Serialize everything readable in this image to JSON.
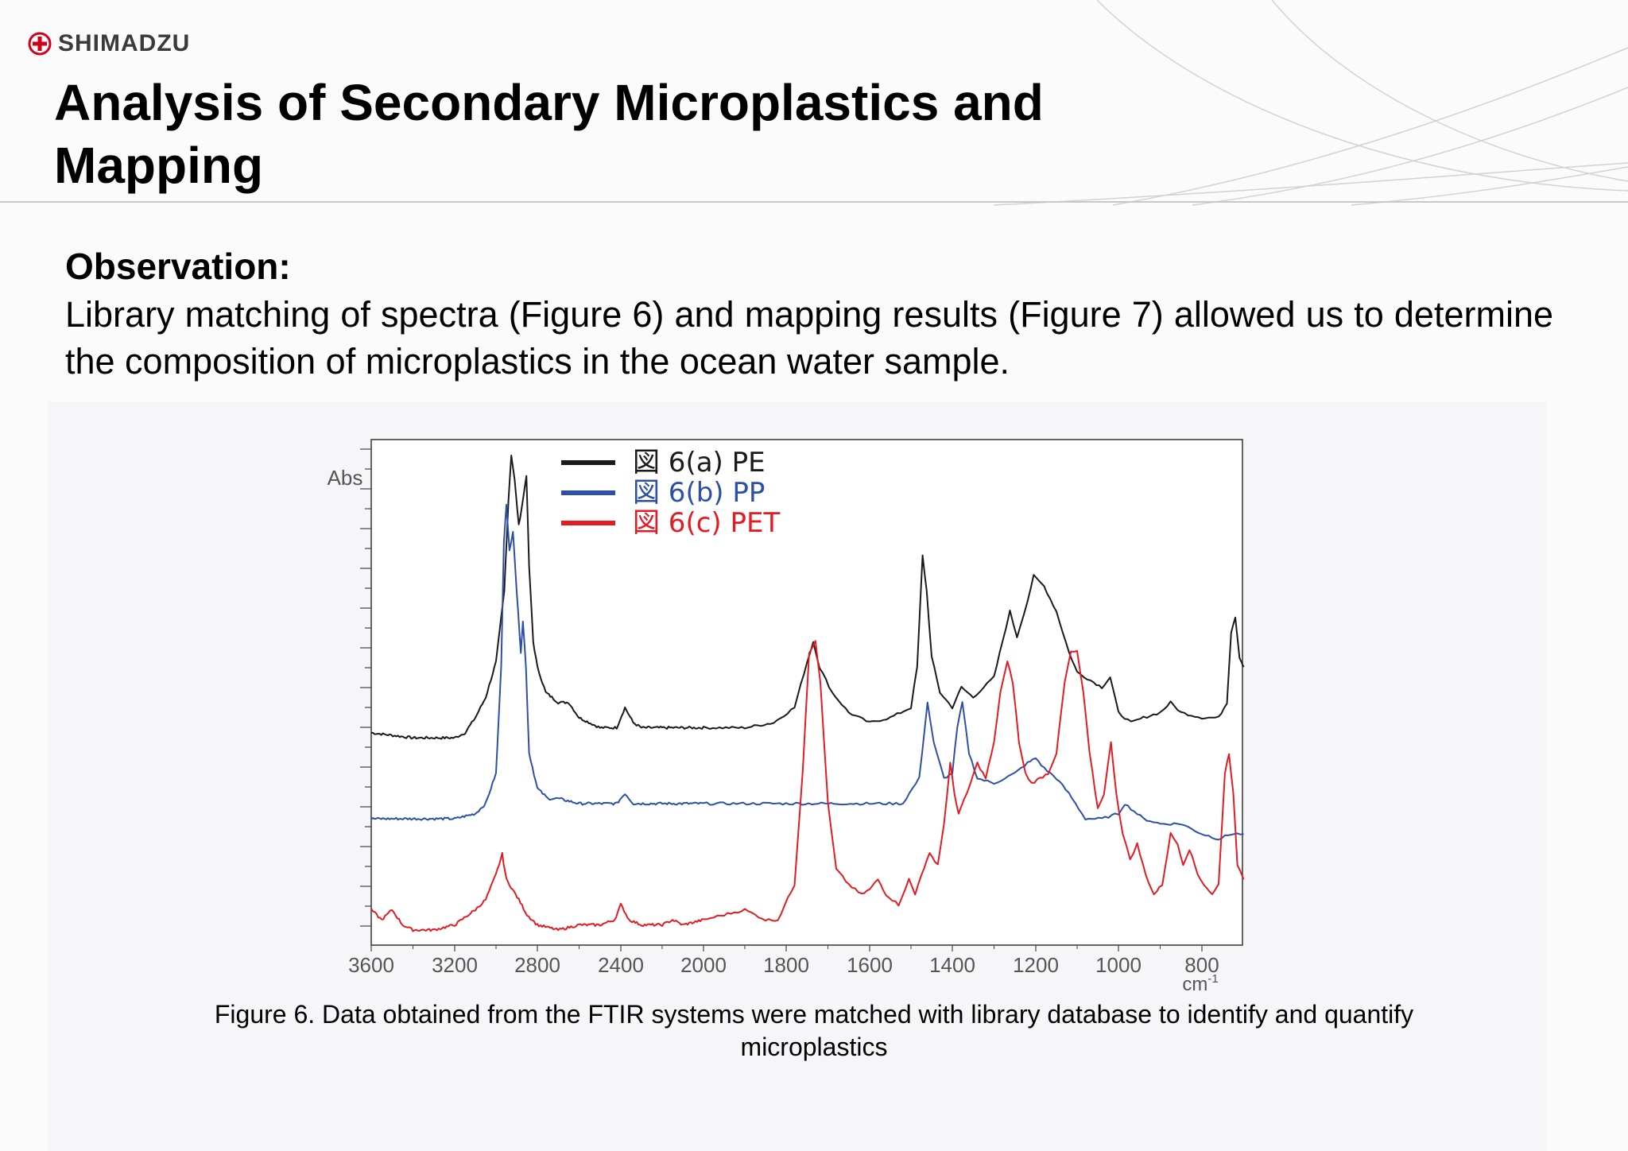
{
  "brand": {
    "name": "SHIMADZU",
    "color": "#d0021b",
    "icon": "shimadzu-cross-logo-icon"
  },
  "page": {
    "title": "Analysis of Secondary Microplastics and Mapping"
  },
  "observation": {
    "heading": "Observation:",
    "text": "Library matching of spectra (Figure 6) and mapping results (Figure 7) allowed us to determine the composition of microplastics in the ocean water sample."
  },
  "figure": {
    "caption": "Figure 6. Data obtained from the FTIR systems were matched with library database to identify and quantify microplastics"
  },
  "chart_data": {
    "type": "line",
    "ylabel": "Abs",
    "xlabel": "cm-1",
    "x_ticks": [
      3600,
      3200,
      2800,
      2400,
      2000,
      1800,
      1600,
      1400,
      1200,
      1000,
      800
    ],
    "x_tick_labels": [
      "3600",
      "3200",
      "2800",
      "2400",
      "2000",
      "1800",
      "1600",
      "1400",
      "1200",
      "1000",
      "800"
    ],
    "xlim": [
      3600,
      700
    ],
    "ylim": [
      0,
      100
    ],
    "grid": false,
    "legend_position": "top-center",
    "series": [
      {
        "name": "図 6(a) PE",
        "color": "#1a1a1a",
        "points": [
          [
            3600,
            42
          ],
          [
            3400,
            41
          ],
          [
            3200,
            41
          ],
          [
            3150,
            42
          ],
          [
            3100,
            45
          ],
          [
            3050,
            49
          ],
          [
            3000,
            56
          ],
          [
            2960,
            70
          ],
          [
            2940,
            88
          ],
          [
            2926,
            97
          ],
          [
            2910,
            92
          ],
          [
            2890,
            83
          ],
          [
            2870,
            88
          ],
          [
            2853,
            93
          ],
          [
            2840,
            75
          ],
          [
            2820,
            60
          ],
          [
            2800,
            55
          ],
          [
            2760,
            50
          ],
          [
            2700,
            48
          ],
          [
            2650,
            48
          ],
          [
            2600,
            45
          ],
          [
            2500,
            43
          ],
          [
            2420,
            43
          ],
          [
            2380,
            47
          ],
          [
            2340,
            44
          ],
          [
            2300,
            43
          ],
          [
            2200,
            43
          ],
          [
            2100,
            43
          ],
          [
            2000,
            43
          ],
          [
            1900,
            43
          ],
          [
            1830,
            44
          ],
          [
            1780,
            47
          ],
          [
            1750,
            56
          ],
          [
            1735,
            60
          ],
          [
            1720,
            55
          ],
          [
            1690,
            50
          ],
          [
            1650,
            46
          ],
          [
            1600,
            44
          ],
          [
            1550,
            45
          ],
          [
            1500,
            47
          ],
          [
            1485,
            55
          ],
          [
            1472,
            77
          ],
          [
            1462,
            70
          ],
          [
            1450,
            57
          ],
          [
            1430,
            50
          ],
          [
            1400,
            47
          ],
          [
            1378,
            51
          ],
          [
            1350,
            49
          ],
          [
            1300,
            53
          ],
          [
            1280,
            60
          ],
          [
            1262,
            66
          ],
          [
            1245,
            61
          ],
          [
            1220,
            68
          ],
          [
            1205,
            73
          ],
          [
            1180,
            71
          ],
          [
            1150,
            66
          ],
          [
            1120,
            58
          ],
          [
            1100,
            54
          ],
          [
            1060,
            52
          ],
          [
            1040,
            51
          ],
          [
            1020,
            53
          ],
          [
            1000,
            46
          ],
          [
            970,
            44
          ],
          [
            940,
            45
          ],
          [
            900,
            46
          ],
          [
            875,
            48
          ],
          [
            850,
            46
          ],
          [
            800,
            45
          ],
          [
            760,
            45
          ],
          [
            740,
            48
          ],
          [
            730,
            62
          ],
          [
            720,
            65
          ],
          [
            710,
            57
          ],
          [
            700,
            55
          ]
        ]
      },
      {
        "name": "図 6(b) PP",
        "color": "#2e4fa8",
        "points": [
          [
            3600,
            25
          ],
          [
            3400,
            25
          ],
          [
            3200,
            25
          ],
          [
            3100,
            26
          ],
          [
            3050,
            28
          ],
          [
            3000,
            34
          ],
          [
            2975,
            55
          ],
          [
            2962,
            80
          ],
          [
            2950,
            87
          ],
          [
            2935,
            78
          ],
          [
            2918,
            82
          ],
          [
            2900,
            70
          ],
          [
            2880,
            58
          ],
          [
            2870,
            64
          ],
          [
            2855,
            55
          ],
          [
            2840,
            38
          ],
          [
            2800,
            31
          ],
          [
            2750,
            29
          ],
          [
            2700,
            29
          ],
          [
            2600,
            28
          ],
          [
            2420,
            28
          ],
          [
            2380,
            30
          ],
          [
            2340,
            28
          ],
          [
            2200,
            28
          ],
          [
            2000,
            28
          ],
          [
            1800,
            28
          ],
          [
            1700,
            28
          ],
          [
            1600,
            28
          ],
          [
            1520,
            28
          ],
          [
            1480,
            33
          ],
          [
            1460,
            48
          ],
          [
            1445,
            40
          ],
          [
            1420,
            33
          ],
          [
            1400,
            34
          ],
          [
            1388,
            43
          ],
          [
            1376,
            48
          ],
          [
            1360,
            38
          ],
          [
            1340,
            33
          ],
          [
            1300,
            32
          ],
          [
            1250,
            34
          ],
          [
            1220,
            36
          ],
          [
            1200,
            37
          ],
          [
            1180,
            35
          ],
          [
            1150,
            33
          ],
          [
            1120,
            30
          ],
          [
            1080,
            25
          ],
          [
            1040,
            25
          ],
          [
            1000,
            26
          ],
          [
            985,
            28
          ],
          [
            970,
            27
          ],
          [
            940,
            25
          ],
          [
            900,
            24
          ],
          [
            850,
            24
          ],
          [
            800,
            22
          ],
          [
            760,
            21
          ],
          [
            730,
            22
          ],
          [
            700,
            22
          ]
        ]
      },
      {
        "name": "図 6(c) PET",
        "color": "#e41b23",
        "points": [
          [
            3600,
            7
          ],
          [
            3550,
            5
          ],
          [
            3500,
            7
          ],
          [
            3450,
            4
          ],
          [
            3400,
            3
          ],
          [
            3300,
            3
          ],
          [
            3200,
            4
          ],
          [
            3100,
            7
          ],
          [
            3050,
            9
          ],
          [
            3000,
            14
          ],
          [
            2970,
            18
          ],
          [
            2950,
            13
          ],
          [
            2920,
            11
          ],
          [
            2890,
            9
          ],
          [
            2850,
            6
          ],
          [
            2800,
            4
          ],
          [
            2700,
            3
          ],
          [
            2600,
            4
          ],
          [
            2500,
            4
          ],
          [
            2430,
            5
          ],
          [
            2400,
            8
          ],
          [
            2360,
            5
          ],
          [
            2300,
            4
          ],
          [
            2200,
            4
          ],
          [
            2150,
            5
          ],
          [
            2100,
            4
          ],
          [
            2000,
            5
          ],
          [
            1950,
            6
          ],
          [
            1900,
            7
          ],
          [
            1850,
            5
          ],
          [
            1820,
            5
          ],
          [
            1780,
            12
          ],
          [
            1760,
            35
          ],
          [
            1745,
            58
          ],
          [
            1730,
            60
          ],
          [
            1718,
            52
          ],
          [
            1700,
            28
          ],
          [
            1680,
            15
          ],
          [
            1650,
            12
          ],
          [
            1620,
            10
          ],
          [
            1600,
            11
          ],
          [
            1580,
            13
          ],
          [
            1560,
            10
          ],
          [
            1530,
            8
          ],
          [
            1505,
            13
          ],
          [
            1490,
            10
          ],
          [
            1475,
            14
          ],
          [
            1455,
            18
          ],
          [
            1435,
            16
          ],
          [
            1420,
            24
          ],
          [
            1405,
            36
          ],
          [
            1395,
            30
          ],
          [
            1385,
            26
          ],
          [
            1365,
            30
          ],
          [
            1340,
            36
          ],
          [
            1320,
            33
          ],
          [
            1300,
            40
          ],
          [
            1285,
            50
          ],
          [
            1268,
            56
          ],
          [
            1255,
            52
          ],
          [
            1240,
            40
          ],
          [
            1225,
            34
          ],
          [
            1210,
            32
          ],
          [
            1190,
            33
          ],
          [
            1170,
            34
          ],
          [
            1150,
            38
          ],
          [
            1130,
            52
          ],
          [
            1115,
            58
          ],
          [
            1100,
            58
          ],
          [
            1085,
            50
          ],
          [
            1070,
            38
          ],
          [
            1050,
            27
          ],
          [
            1035,
            30
          ],
          [
            1018,
            40
          ],
          [
            1005,
            30
          ],
          [
            990,
            22
          ],
          [
            972,
            17
          ],
          [
            955,
            20
          ],
          [
            935,
            14
          ],
          [
            915,
            10
          ],
          [
            895,
            12
          ],
          [
            875,
            22
          ],
          [
            858,
            20
          ],
          [
            845,
            16
          ],
          [
            830,
            19
          ],
          [
            810,
            14
          ],
          [
            795,
            12
          ],
          [
            775,
            10
          ],
          [
            760,
            12
          ],
          [
            745,
            34
          ],
          [
            735,
            38
          ],
          [
            725,
            30
          ],
          [
            715,
            16
          ],
          [
            700,
            13
          ]
        ]
      }
    ]
  }
}
